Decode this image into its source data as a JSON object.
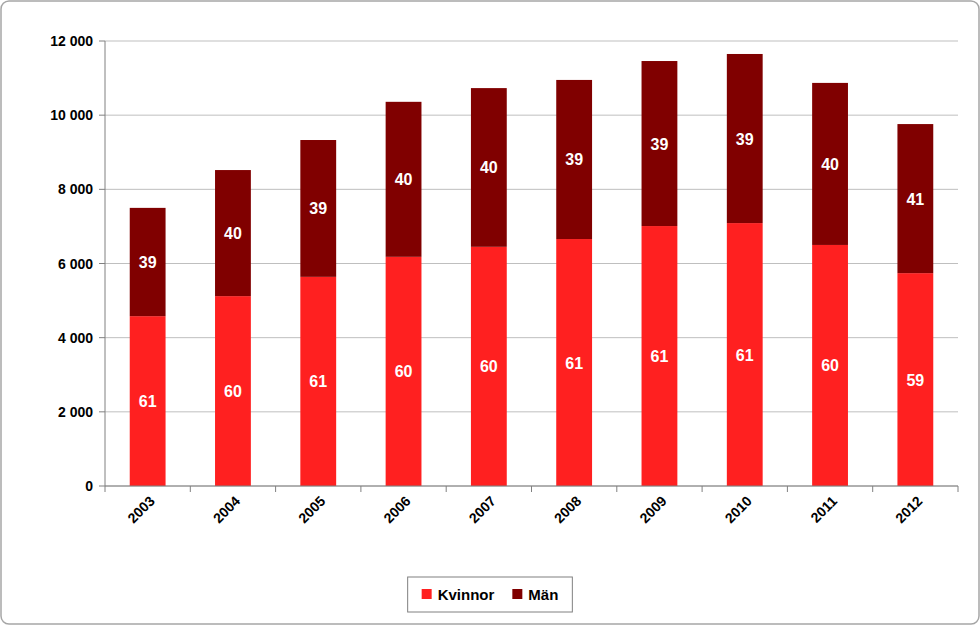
{
  "chart_data": {
    "type": "bar",
    "stacked": true,
    "grid": true,
    "legend": "bottom",
    "categories": [
      "2003",
      "2004",
      "2005",
      "2006",
      "2007",
      "2008",
      "2009",
      "2010",
      "2011",
      "2012"
    ],
    "series": [
      {
        "name": "Kvinnor",
        "color": "#ff2020",
        "values": [
          4580,
          5120,
          5640,
          6180,
          6450,
          6660,
          7010,
          7090,
          6500,
          5740
        ],
        "shares": [
          61,
          60,
          61,
          60,
          60,
          61,
          61,
          61,
          60,
          59
        ]
      },
      {
        "name": "Män",
        "color": "#800000",
        "values": [
          2920,
          3400,
          3690,
          4180,
          4280,
          4290,
          4450,
          4560,
          4370,
          4020
        ],
        "shares": [
          39,
          40,
          39,
          40,
          40,
          39,
          39,
          39,
          40,
          41
        ]
      }
    ],
    "ylim": [
      0,
      12000
    ],
    "yticks": [
      0,
      {
        "value": 2000,
        "label": "2 000"
      },
      {
        "value": 4000,
        "label": "4 000"
      },
      {
        "value": 6000,
        "label": "6 000"
      },
      {
        "value": 8000,
        "label": "8 000"
      },
      {
        "value": 10000,
        "label": "10 000"
      },
      {
        "value": 12000,
        "label": "12 000"
      }
    ]
  }
}
